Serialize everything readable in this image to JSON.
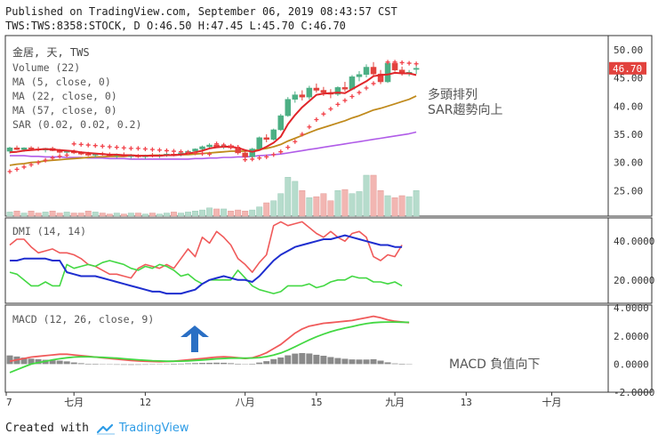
{
  "header": {
    "line1": "Published on TradingView.com, September 06, 2019 08:43:57 CST",
    "line2": "TWS:TWS:8358:STOCK, D O:46.50 H:47.45 L:45.70 C:46.70"
  },
  "footer": {
    "created_with": "Created with",
    "brand": "TradingView"
  },
  "colors": {
    "up": "#4caf84",
    "down": "#e2423d",
    "volume_up": "#b6dccc",
    "volume_down": "#f2b6b2",
    "ma5": "#e0262a",
    "ma22": "#c08a1c",
    "ma57": "#b05ce8",
    "sar": "#f2424a",
    "dmi_plus": "#f05a5a",
    "dmi_minus": "#43d843",
    "adx": "#1e2ecf",
    "macd": "#f05a5a",
    "signal": "#43d843",
    "hist": "#888888",
    "arrow": "#2a6fc4",
    "price_tag": "#e2423d"
  },
  "chart_data": [
    {
      "type": "candlestick",
      "panel": "price",
      "title": "金居, 天, TWS",
      "legend": [
        "Volume (22)",
        "MA (5, close, 0)",
        "MA (22, close, 0)",
        "MA (57, close, 0)",
        "SAR (0.02, 0.02, 0.2)"
      ],
      "x_tick_labels": [
        "7",
        "七月",
        "12",
        "八月",
        "15",
        "九月",
        "13",
        "十月"
      ],
      "y_ticks": [
        25.0,
        30.0,
        35.0,
        40.0,
        45.0,
        50.0
      ],
      "ylim": [
        20.5,
        52.5
      ],
      "last_price_label": "46.70",
      "annotations": [
        "多頭排列",
        "SAR趨勢向上"
      ],
      "candles": [
        [
          32.0,
          32.8,
          31.6,
          32.6
        ],
        [
          32.6,
          33.0,
          32.2,
          32.3
        ],
        [
          32.3,
          32.7,
          31.9,
          32.6
        ],
        [
          32.6,
          32.9,
          32.2,
          32.4
        ],
        [
          32.4,
          32.8,
          32.0,
          32.2
        ],
        [
          32.2,
          32.6,
          31.8,
          32.5
        ],
        [
          32.5,
          32.8,
          32.0,
          32.1
        ],
        [
          32.1,
          32.4,
          31.6,
          31.8
        ],
        [
          31.8,
          32.2,
          31.4,
          32.0
        ],
        [
          32.0,
          32.3,
          31.5,
          31.7
        ],
        [
          31.7,
          32.0,
          31.3,
          31.5
        ],
        [
          31.5,
          31.9,
          31.1,
          31.3
        ],
        [
          31.3,
          31.7,
          30.9,
          31.6
        ],
        [
          31.6,
          31.9,
          31.2,
          31.4
        ],
        [
          31.4,
          31.8,
          31.0,
          31.2
        ],
        [
          31.2,
          31.6,
          30.8,
          31.4
        ],
        [
          31.4,
          31.8,
          31.0,
          31.1
        ],
        [
          31.1,
          31.5,
          30.7,
          31.2
        ],
        [
          31.2,
          31.5,
          30.8,
          31.0
        ],
        [
          31.0,
          31.4,
          30.6,
          31.3
        ],
        [
          31.3,
          31.7,
          30.9,
          31.1
        ],
        [
          31.1,
          31.5,
          30.8,
          31.3
        ],
        [
          31.3,
          31.7,
          31.0,
          31.5
        ],
        [
          31.5,
          31.9,
          31.1,
          31.4
        ],
        [
          31.4,
          31.8,
          31.1,
          31.7
        ],
        [
          31.7,
          32.2,
          31.4,
          32.0
        ],
        [
          32.0,
          32.5,
          31.7,
          32.4
        ],
        [
          32.4,
          33.0,
          32.1,
          32.8
        ],
        [
          32.8,
          33.4,
          32.5,
          33.1
        ],
        [
          33.1,
          33.5,
          32.6,
          32.8
        ],
        [
          32.8,
          33.2,
          32.4,
          33.0
        ],
        [
          33.0,
          33.3,
          32.3,
          32.6
        ],
        [
          32.6,
          33.1,
          31.4,
          31.7
        ],
        [
          31.7,
          32.2,
          30.6,
          31.0
        ],
        [
          31.0,
          32.6,
          30.5,
          32.4
        ],
        [
          32.4,
          34.6,
          32.2,
          34.4
        ],
        [
          34.4,
          35.0,
          33.6,
          34.1
        ],
        [
          34.1,
          36.0,
          33.9,
          35.8
        ],
        [
          35.8,
          38.6,
          35.6,
          38.3
        ],
        [
          38.3,
          41.6,
          38.1,
          41.2
        ],
        [
          41.2,
          42.6,
          40.6,
          42.0
        ],
        [
          42.0,
          42.8,
          41.0,
          41.6
        ],
        [
          41.6,
          43.6,
          41.2,
          43.2
        ],
        [
          43.2,
          44.0,
          42.4,
          42.8
        ],
        [
          42.8,
          43.4,
          41.8,
          42.4
        ],
        [
          42.4,
          43.0,
          41.4,
          42.1
        ],
        [
          42.1,
          43.5,
          41.8,
          43.3
        ],
        [
          43.3,
          44.3,
          42.6,
          43.0
        ],
        [
          43.0,
          45.5,
          42.8,
          45.2
        ],
        [
          45.2,
          46.2,
          44.4,
          45.6
        ],
        [
          45.6,
          47.4,
          45.1,
          46.9
        ],
        [
          46.9,
          47.8,
          45.2,
          45.7
        ],
        [
          45.7,
          46.4,
          43.9,
          44.3
        ],
        [
          44.3,
          48.0,
          44.1,
          47.6
        ],
        [
          47.6,
          48.0,
          46.1,
          46.4
        ],
        [
          46.4,
          47.0,
          45.4,
          45.8
        ],
        [
          45.8,
          46.4,
          45.3,
          46.0
        ],
        [
          46.5,
          47.45,
          45.7,
          46.7
        ]
      ],
      "volume": [
        4,
        5,
        3,
        5,
        3,
        4,
        5,
        3,
        4,
        3,
        3,
        5,
        4,
        3,
        2,
        3,
        2,
        3,
        3,
        2,
        3,
        2,
        3,
        4,
        3,
        4,
        5,
        6,
        8,
        7,
        7,
        5,
        6,
        5,
        6,
        9,
        13,
        15,
        22,
        38,
        34,
        25,
        18,
        19,
        22,
        15,
        25,
        26,
        22,
        24,
        40,
        40,
        25,
        20,
        18,
        20,
        19,
        25
      ],
      "ma5": [
        31.8,
        31.9,
        32.1,
        32.2,
        32.3,
        32.4,
        32.3,
        32.2,
        32.1,
        32.0,
        31.8,
        31.7,
        31.6,
        31.5,
        31.4,
        31.4,
        31.3,
        31.3,
        31.2,
        31.2,
        31.2,
        31.2,
        31.3,
        31.3,
        31.4,
        31.6,
        31.8,
        32.1,
        32.5,
        32.7,
        32.8,
        32.8,
        32.6,
        32.2,
        31.9,
        32.2,
        32.8,
        33.5,
        34.6,
        36.8,
        38.4,
        39.8,
        40.9,
        42.0,
        42.2,
        42.3,
        42.4,
        42.3,
        43.0,
        43.7,
        44.4,
        45.3,
        45.5,
        45.6,
        45.9,
        45.8,
        45.8,
        45.5
      ],
      "ma22": [
        29.5,
        29.7,
        29.8,
        30.0,
        30.1,
        30.3,
        30.4,
        30.5,
        30.6,
        30.7,
        30.8,
        30.9,
        31.0,
        31.0,
        31.1,
        31.1,
        31.1,
        31.2,
        31.2,
        31.2,
        31.3,
        31.3,
        31.3,
        31.3,
        31.4,
        31.4,
        31.5,
        31.6,
        31.7,
        31.8,
        31.9,
        32.0,
        32.0,
        32.0,
        32.1,
        32.3,
        32.5,
        32.8,
        33.2,
        33.8,
        34.3,
        34.8,
        35.3,
        35.8,
        36.2,
        36.6,
        37.0,
        37.4,
        37.9,
        38.3,
        38.8,
        39.3,
        39.6,
        40.0,
        40.4,
        40.8,
        41.2,
        41.8
      ],
      "ma57": [
        31.2,
        31.2,
        31.2,
        31.1,
        31.1,
        31.0,
        31.0,
        31.0,
        30.9,
        30.9,
        30.9,
        30.8,
        30.8,
        30.8,
        30.7,
        30.7,
        30.7,
        30.6,
        30.6,
        30.6,
        30.6,
        30.6,
        30.6,
        30.6,
        30.6,
        30.6,
        30.7,
        30.7,
        30.8,
        30.8,
        30.9,
        30.9,
        31.0,
        31.0,
        31.1,
        31.2,
        31.3,
        31.4,
        31.5,
        31.7,
        31.9,
        32.1,
        32.3,
        32.5,
        32.7,
        32.9,
        33.1,
        33.3,
        33.5,
        33.7,
        33.9,
        34.1,
        34.3,
        34.5,
        34.7,
        34.9,
        35.1,
        35.4
      ],
      "sar": [
        28.4,
        28.8,
        29.2,
        29.6,
        30.0,
        30.4,
        30.8,
        31.1,
        31.3,
        33.3,
        33.2,
        33.1,
        33.0,
        32.9,
        32.8,
        32.7,
        32.6,
        32.5,
        32.5,
        32.4,
        32.3,
        32.2,
        32.1,
        32.0,
        31.9,
        31.8,
        31.7,
        31.6,
        31.5,
        33.3,
        33.1,
        32.9,
        32.7,
        30.5,
        30.6,
        30.8,
        31.0,
        31.4,
        31.9,
        32.7,
        33.7,
        35.0,
        36.3,
        37.6,
        38.6,
        39.5,
        40.3,
        41.0,
        41.7,
        42.4,
        43.2,
        44.0,
        44.9,
        47.8,
        47.8,
        47.7,
        47.6,
        47.5
      ]
    },
    {
      "type": "line",
      "panel": "dmi",
      "title": "DMI (14, 14)",
      "y_ticks": [
        20.0,
        40.0
      ],
      "ylim": [
        8,
        52
      ],
      "series": [
        {
          "name": "+DI",
          "values": [
            38,
            41,
            41,
            37,
            34,
            35,
            36,
            34,
            34,
            33,
            31,
            28,
            27,
            25,
            23,
            23,
            22,
            21,
            26,
            28,
            27,
            26,
            28,
            26,
            31,
            36,
            32,
            42,
            39,
            45,
            42,
            38,
            31,
            28,
            24,
            29,
            33,
            48,
            50,
            48,
            49,
            50,
            47,
            44,
            42,
            45,
            42,
            40,
            44,
            45,
            42,
            32,
            30,
            33,
            32,
            38
          ]
        },
        {
          "name": "-DI",
          "values": [
            24,
            23,
            20,
            17,
            17,
            19,
            17,
            17,
            28,
            26,
            27,
            28,
            27,
            29,
            30,
            29,
            28,
            26,
            25,
            27,
            26,
            28,
            27,
            25,
            22,
            23,
            20,
            18,
            20,
            20,
            20,
            20,
            25,
            21,
            17,
            15,
            14,
            13,
            14,
            17,
            17,
            17,
            18,
            16,
            17,
            19,
            20,
            20,
            22,
            21,
            21,
            19,
            19,
            18,
            19,
            17
          ]
        },
        {
          "name": "ADX",
          "values": [
            30,
            30,
            31,
            31,
            31,
            31,
            30,
            30,
            24,
            23,
            22,
            22,
            22,
            21,
            20,
            19,
            18,
            17,
            16,
            15,
            14,
            14,
            13,
            13,
            13,
            14,
            15,
            18,
            20,
            21,
            22,
            21,
            20,
            20,
            19,
            22,
            26,
            30,
            33,
            35,
            37,
            38,
            39,
            40,
            41,
            41,
            42,
            43,
            42,
            41,
            40,
            39,
            38,
            38,
            37,
            37
          ]
        }
      ]
    },
    {
      "type": "line",
      "panel": "macd",
      "title": "MACD (12, 26, close, 9)",
      "y_ticks": [
        -2.0,
        0.0,
        2.0,
        4.0
      ],
      "y_tick_labels": [
        "-2.0000",
        "0.0000",
        "2.0000",
        "4.0000"
      ],
      "ylim": [
        -2.0,
        4.2
      ],
      "annotation": "MACD 負值向下",
      "series": [
        {
          "name": "MACD",
          "values": [
            0.2,
            0.3,
            0.4,
            0.5,
            0.55,
            0.6,
            0.65,
            0.7,
            0.7,
            0.65,
            0.6,
            0.55,
            0.5,
            0.45,
            0.4,
            0.35,
            0.3,
            0.25,
            0.22,
            0.2,
            0.18,
            0.17,
            0.18,
            0.2,
            0.25,
            0.3,
            0.35,
            0.4,
            0.45,
            0.5,
            0.52,
            0.5,
            0.45,
            0.4,
            0.45,
            0.6,
            0.8,
            1.1,
            1.4,
            1.8,
            2.2,
            2.5,
            2.7,
            2.8,
            2.9,
            2.95,
            3.0,
            3.05,
            3.1,
            3.2,
            3.3,
            3.4,
            3.3,
            3.15,
            3.05,
            3.0,
            2.95
          ]
        },
        {
          "name": "Signal",
          "values": [
            -0.6,
            -0.4,
            -0.2,
            0.0,
            0.1,
            0.2,
            0.3,
            0.38,
            0.45,
            0.5,
            0.52,
            0.52,
            0.5,
            0.48,
            0.45,
            0.42,
            0.38,
            0.34,
            0.3,
            0.27,
            0.24,
            0.22,
            0.2,
            0.2,
            0.21,
            0.23,
            0.26,
            0.29,
            0.33,
            0.37,
            0.4,
            0.42,
            0.42,
            0.42,
            0.43,
            0.46,
            0.53,
            0.64,
            0.79,
            0.99,
            1.23,
            1.48,
            1.72,
            1.94,
            2.13,
            2.3,
            2.44,
            2.56,
            2.67,
            2.78,
            2.88,
            2.95,
            2.98,
            2.99,
            2.99,
            2.98,
            2.97
          ]
        },
        {
          "name": "Histogram",
          "values": [
            0.8,
            0.7,
            0.6,
            0.5,
            0.45,
            0.4,
            0.35,
            0.32,
            0.25,
            0.15,
            0.08,
            0.03,
            0.0,
            -0.03,
            -0.05,
            -0.07,
            -0.08,
            -0.09,
            -0.08,
            -0.07,
            -0.06,
            -0.05,
            -0.02,
            0.0,
            0.04,
            0.07,
            0.09,
            0.11,
            0.12,
            0.13,
            0.12,
            0.08,
            0.03,
            -0.02,
            0.02,
            0.14,
            0.27,
            0.46,
            0.61,
            0.81,
            0.97,
            1.02,
            0.98,
            0.86,
            0.77,
            0.65,
            0.56,
            0.49,
            0.43,
            0.42,
            0.42,
            0.45,
            0.32,
            0.16,
            0.06,
            0.02,
            -0.02
          ]
        }
      ]
    }
  ]
}
